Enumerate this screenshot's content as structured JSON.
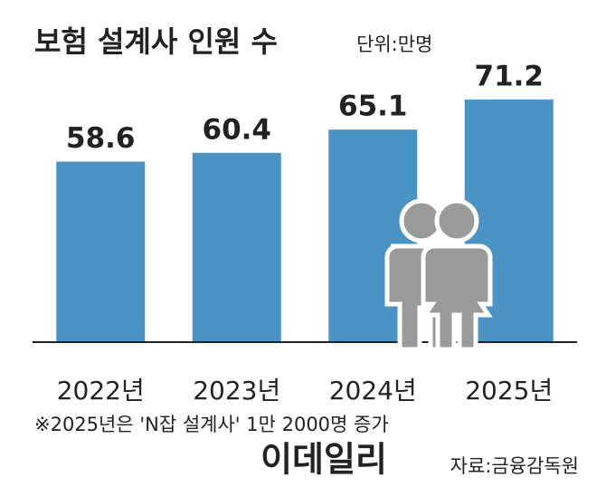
{
  "chart_data": {
    "type": "bar",
    "title": "보험 설계사 인원 수",
    "subtitle": "단위:만명",
    "categories": [
      "2022년",
      "2023년",
      "2024년",
      "2025년"
    ],
    "values": [
      58.6,
      60.4,
      65.1,
      71.2
    ],
    "color": "#4a93c4",
    "ylim": [
      22,
      80
    ],
    "note": "※2025년은 'N잡 설계사' 1만 2000명 증가",
    "source": "자료:금융감독원",
    "watermark": "이데일리"
  }
}
